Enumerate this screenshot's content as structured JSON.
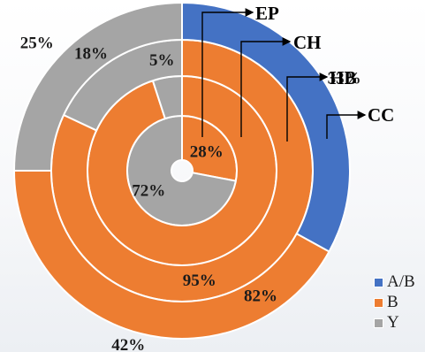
{
  "chart_data": {
    "type": "pie",
    "subtype": "nested-donut",
    "colors": {
      "A/B": "#4472c4",
      "B": "#ed7d31",
      "Y": "#a5a5a5"
    },
    "legend": {
      "position": "bottom-right",
      "entries": [
        "A/B",
        "B",
        "Y"
      ]
    },
    "rings": [
      {
        "name": "EP",
        "values": [
          {
            "category": "B",
            "value": 28,
            "label": "28%"
          },
          {
            "category": "Y",
            "value": 72,
            "label": "72%"
          }
        ]
      },
      {
        "name": "CH",
        "values": [
          {
            "category": "B",
            "value": 95,
            "label": "95%"
          },
          {
            "category": "Y",
            "value": 5,
            "label": "5%"
          }
        ]
      },
      {
        "name": "HB",
        "values": [
          {
            "category": "B",
            "value": 82,
            "label": "82%"
          },
          {
            "category": "Y",
            "value": 18,
            "label": "18%"
          }
        ]
      },
      {
        "name": "CC",
        "values": [
          {
            "category": "A/B",
            "value": 33,
            "label": "33%"
          },
          {
            "category": "B",
            "value": 42,
            "label": "42%"
          },
          {
            "category": "Y",
            "value": 25,
            "label": "25%"
          }
        ]
      }
    ]
  }
}
